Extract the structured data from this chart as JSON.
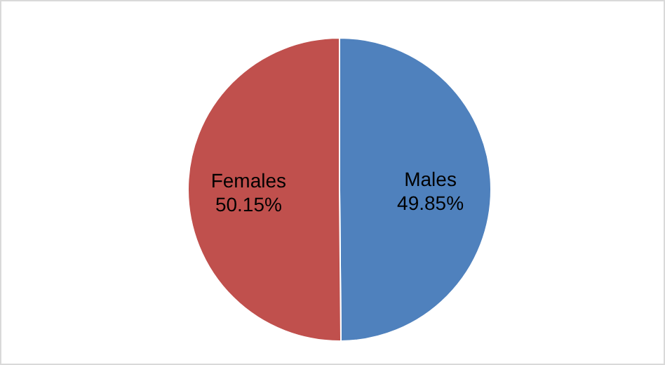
{
  "chart_data": {
    "type": "pie",
    "categories": [
      "Males",
      "Females"
    ],
    "values": [
      49.85,
      50.15
    ],
    "colors": [
      "#4f81bd",
      "#c0504d"
    ],
    "value_labels": [
      "49.85%",
      "50.15%"
    ],
    "legend": false
  }
}
